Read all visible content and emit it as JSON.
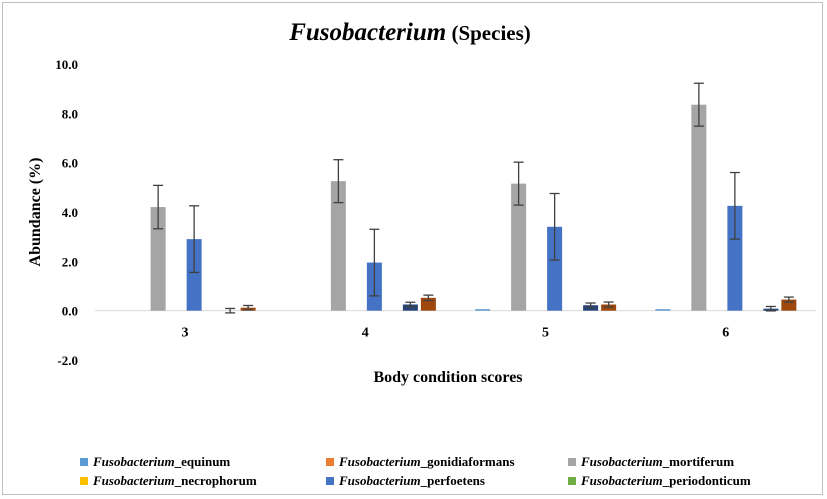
{
  "chart_data": {
    "type": "bar",
    "title_italic": "Fusobacterium",
    "title_rest": " (Species)",
    "xlabel": "Body condition scores",
    "ylabel": "Abundance (%)",
    "ylim": [
      -2.0,
      10.0
    ],
    "yticks": [
      "-2.0",
      "0.0",
      "2.0",
      "4.0",
      "6.0",
      "8.0",
      "10.0"
    ],
    "ytick_values": [
      -2,
      0,
      2,
      4,
      6,
      8,
      10
    ],
    "grid": false,
    "legend_position": "bottom",
    "categories": [
      "3",
      "4",
      "5",
      "6"
    ],
    "series": [
      {
        "name_italic": "Fusobacterium",
        "name_rest": "_equinum",
        "color": "#5b9bd5",
        "values": [
          0.0,
          0.0,
          0.05,
          0.05
        ],
        "errors": [
          null,
          null,
          null,
          null
        ]
      },
      {
        "name_italic": "Fusobacterium",
        "name_rest": "_gonidiaformans",
        "color": "#ed7d31",
        "values": [
          0.0,
          0.0,
          0.0,
          0.0
        ],
        "errors": [
          null,
          null,
          null,
          null
        ]
      },
      {
        "name_italic": "Fusobacterium",
        "name_rest": "_mortiferum",
        "color": "#a5a5a5",
        "values": [
          4.2,
          5.25,
          5.15,
          8.35
        ],
        "errors": [
          0.88,
          0.87,
          0.87,
          0.87
        ]
      },
      {
        "name_italic": "Fusobacterium",
        "name_rest": "_necrophorum",
        "color": "#ffc000",
        "values": [
          0.0,
          0.0,
          0.0,
          0.0
        ],
        "errors": [
          null,
          null,
          null,
          null
        ]
      },
      {
        "name_italic": "Fusobacterium",
        "name_rest": "_perfoetens",
        "color": "#4472c4",
        "values": [
          2.9,
          1.95,
          3.4,
          4.25
        ],
        "errors": [
          1.35,
          1.35,
          1.35,
          1.35
        ]
      },
      {
        "name_italic": "Fusobacterium",
        "name_rest": "_periodonticum",
        "color": "#70ad47",
        "values": [
          0.0,
          0.0,
          0.0,
          0.0
        ],
        "errors": [
          null,
          null,
          null,
          null
        ]
      },
      {
        "name": "",
        "color": "#264478",
        "values": [
          0.0,
          0.25,
          0.22,
          0.08
        ],
        "errors": [
          0.09,
          0.09,
          0.09,
          0.09
        ]
      },
      {
        "name": "",
        "color": "#9e480e",
        "values": [
          0.12,
          0.52,
          0.25,
          0.45
        ],
        "errors": [
          0.09,
          0.11,
          0.1,
          0.1
        ]
      }
    ]
  }
}
